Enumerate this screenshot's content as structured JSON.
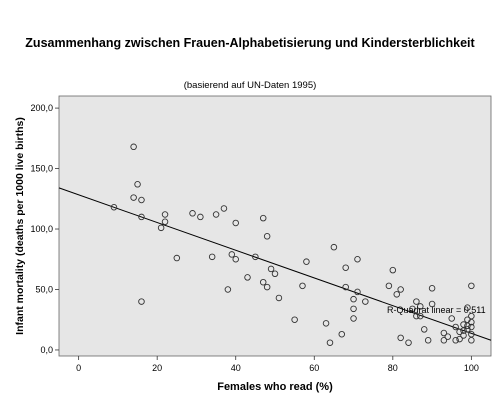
{
  "chart_data": {
    "type": "scatter",
    "title": "Zusammenhang zwischen Frauen-Alphabetisierung und Kindersterblichkeit",
    "subtitle": "(basierend auf UN-Daten 1995)",
    "xlabel": "Females who read (%)",
    "ylabel": "Infant mortality (deaths per 1000 live births)",
    "xlim": [
      -5,
      105
    ],
    "ylim": [
      -5,
      210
    ],
    "xticks": [
      0,
      20,
      40,
      60,
      80,
      100
    ],
    "xtick_labels": [
      "0",
      "20",
      "40",
      "60",
      "80",
      "100"
    ],
    "yticks": [
      0,
      50,
      100,
      150,
      200
    ],
    "ytick_labels": [
      "0,0",
      "50,0",
      "100,0",
      "150,0",
      "200,0"
    ],
    "grid": false,
    "background": "#e6e6e6",
    "marker_color": "#333333",
    "fit_line": {
      "x": [
        -5,
        105
      ],
      "y": [
        134,
        8
      ]
    },
    "fit_label": "R-Quadrat linear = 0,511",
    "points": [
      {
        "x": 9,
        "y": 118
      },
      {
        "x": 14,
        "y": 168
      },
      {
        "x": 14,
        "y": 126
      },
      {
        "x": 15,
        "y": 137
      },
      {
        "x": 16,
        "y": 124
      },
      {
        "x": 16,
        "y": 110
      },
      {
        "x": 16,
        "y": 40
      },
      {
        "x": 21,
        "y": 101
      },
      {
        "x": 22,
        "y": 112
      },
      {
        "x": 22,
        "y": 106
      },
      {
        "x": 25,
        "y": 76
      },
      {
        "x": 29,
        "y": 113
      },
      {
        "x": 31,
        "y": 110
      },
      {
        "x": 34,
        "y": 77
      },
      {
        "x": 35,
        "y": 112
      },
      {
        "x": 37,
        "y": 117
      },
      {
        "x": 38,
        "y": 50
      },
      {
        "x": 39,
        "y": 79
      },
      {
        "x": 40,
        "y": 105
      },
      {
        "x": 40,
        "y": 75
      },
      {
        "x": 43,
        "y": 60
      },
      {
        "x": 45,
        "y": 77
      },
      {
        "x": 47,
        "y": 109
      },
      {
        "x": 47,
        "y": 56
      },
      {
        "x": 48,
        "y": 94
      },
      {
        "x": 48,
        "y": 52
      },
      {
        "x": 49,
        "y": 67
      },
      {
        "x": 50,
        "y": 63
      },
      {
        "x": 51,
        "y": 43
      },
      {
        "x": 55,
        "y": 25
      },
      {
        "x": 57,
        "y": 53
      },
      {
        "x": 58,
        "y": 73
      },
      {
        "x": 63,
        "y": 22
      },
      {
        "x": 64,
        "y": 6
      },
      {
        "x": 65,
        "y": 85
      },
      {
        "x": 67,
        "y": 13
      },
      {
        "x": 68,
        "y": 68
      },
      {
        "x": 68,
        "y": 52
      },
      {
        "x": 70,
        "y": 42
      },
      {
        "x": 70,
        "y": 34
      },
      {
        "x": 70,
        "y": 26
      },
      {
        "x": 71,
        "y": 75
      },
      {
        "x": 71,
        "y": 48
      },
      {
        "x": 73,
        "y": 40
      },
      {
        "x": 79,
        "y": 53
      },
      {
        "x": 80,
        "y": 66
      },
      {
        "x": 81,
        "y": 46
      },
      {
        "x": 82,
        "y": 50
      },
      {
        "x": 82,
        "y": 10
      },
      {
        "x": 84,
        "y": 6
      },
      {
        "x": 85,
        "y": 34
      },
      {
        "x": 86,
        "y": 40
      },
      {
        "x": 86,
        "y": 28
      },
      {
        "x": 87,
        "y": 36
      },
      {
        "x": 87,
        "y": 28
      },
      {
        "x": 88,
        "y": 17
      },
      {
        "x": 89,
        "y": 8
      },
      {
        "x": 90,
        "y": 51
      },
      {
        "x": 90,
        "y": 38
      },
      {
        "x": 93,
        "y": 14
      },
      {
        "x": 93,
        "y": 8
      },
      {
        "x": 94,
        "y": 11
      },
      {
        "x": 95,
        "y": 26
      },
      {
        "x": 96,
        "y": 19
      },
      {
        "x": 96,
        "y": 8
      },
      {
        "x": 97,
        "y": 9
      },
      {
        "x": 97,
        "y": 15
      },
      {
        "x": 98,
        "y": 12
      },
      {
        "x": 98,
        "y": 16
      },
      {
        "x": 98,
        "y": 21
      },
      {
        "x": 99,
        "y": 25
      },
      {
        "x": 99,
        "y": 17
      },
      {
        "x": 99,
        "y": 20
      },
      {
        "x": 99,
        "y": 35
      },
      {
        "x": 100,
        "y": 53
      },
      {
        "x": 100,
        "y": 28
      },
      {
        "x": 100,
        "y": 23
      },
      {
        "x": 100,
        "y": 19
      },
      {
        "x": 100,
        "y": 13
      },
      {
        "x": 100,
        "y": 8
      }
    ]
  }
}
